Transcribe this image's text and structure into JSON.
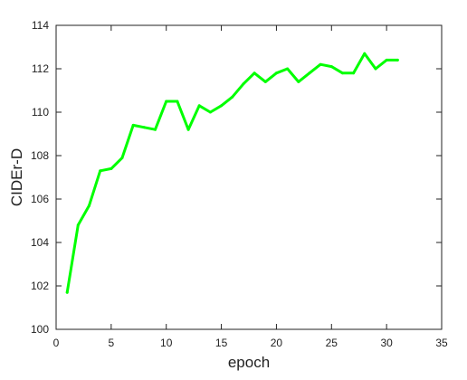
{
  "chart_data": {
    "type": "line",
    "title": "",
    "xlabel": "epoch",
    "ylabel": "CIDEr-D",
    "xlim": [
      0,
      35
    ],
    "ylim": [
      100,
      114
    ],
    "xticks": [
      0,
      5,
      10,
      15,
      20,
      25,
      30,
      35
    ],
    "yticks": [
      100,
      102,
      104,
      106,
      108,
      110,
      112,
      114
    ],
    "grid": false,
    "series": [
      {
        "color": "#00ff00",
        "x": [
          1,
          2,
          3,
          4,
          5,
          6,
          7,
          8,
          9,
          10,
          11,
          12,
          13,
          14,
          15,
          16,
          17,
          18,
          19,
          20,
          21,
          22,
          23,
          24,
          25,
          26,
          27,
          28,
          29,
          30,
          31
        ],
        "y": [
          101.7,
          104.8,
          105.7,
          107.3,
          107.4,
          107.9,
          109.4,
          109.3,
          109.2,
          110.5,
          110.5,
          109.2,
          110.3,
          110.0,
          110.3,
          110.7,
          111.3,
          111.8,
          111.4,
          111.8,
          112.0,
          111.4,
          111.8,
          112.2,
          112.1,
          111.8,
          111.8,
          112.7,
          112.0,
          112.4,
          112.4
        ]
      }
    ]
  }
}
